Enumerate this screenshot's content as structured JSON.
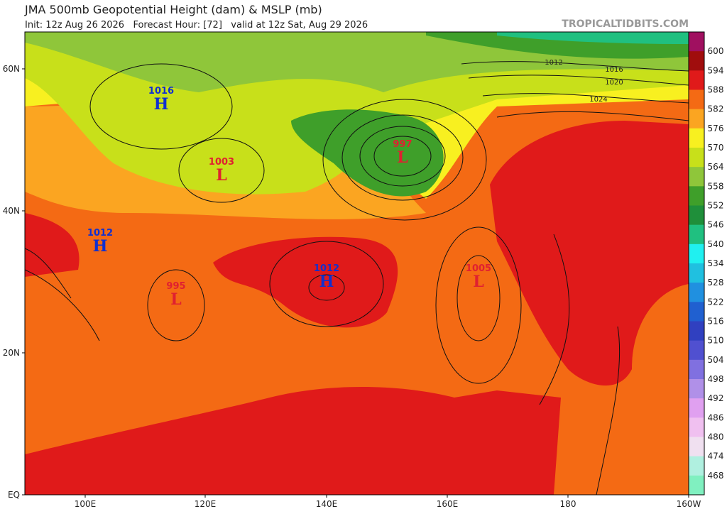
{
  "header": {
    "title": "JMA 500mb Geopotential Height (dam) & MSLP (mb)",
    "subtitle": "Init: 12z Aug 26 2026   Forecast Hour: [72]   valid at 12z Sat, Aug 29 2026",
    "site": "TROPICALTIDBITS.COM"
  },
  "axes": {
    "lat_labels": [
      "60N",
      "40N",
      "20N",
      "EQ"
    ],
    "lon_labels": [
      "100E",
      "120E",
      "140E",
      "160E",
      "180",
      "160W"
    ]
  },
  "colorbar": {
    "levels": [
      {
        "label": "600",
        "color": "#a01060"
      },
      {
        "label": "594",
        "color": "#a00d0d"
      },
      {
        "label": "588",
        "color": "#e01a1a"
      },
      {
        "label": "582",
        "color": "#f46a14"
      },
      {
        "label": "576",
        "color": "#fba521"
      },
      {
        "label": "570",
        "color": "#f8f020"
      },
      {
        "label": "564",
        "color": "#c8e01a"
      },
      {
        "label": "558",
        "color": "#8fc63a"
      },
      {
        "label": "552",
        "color": "#3f9f2a"
      },
      {
        "label": "546",
        "color": "#1f8f3a"
      },
      {
        "label": "540",
        "color": "#20c080"
      },
      {
        "label": "534",
        "color": "#20f0f0"
      },
      {
        "label": "528",
        "color": "#20c0e0"
      },
      {
        "label": "522",
        "color": "#2090e0"
      },
      {
        "label": "516",
        "color": "#2060d0"
      },
      {
        "label": "510",
        "color": "#3040c0"
      },
      {
        "label": "504",
        "color": "#5050d0"
      },
      {
        "label": "498",
        "color": "#8070e0"
      },
      {
        "label": "492",
        "color": "#b090e8"
      },
      {
        "label": "486",
        "color": "#e0a0f0"
      },
      {
        "label": "480",
        "color": "#f0c0f0"
      },
      {
        "label": "474",
        "color": "#f0e0f0"
      },
      {
        "label": "468",
        "color": "#b0f0e0"
      },
      {
        "label": null,
        "color": "#80f0c0"
      }
    ]
  },
  "pressure_centers": [
    {
      "value": "1016",
      "symbol": "H"
    },
    {
      "value": "1003",
      "symbol": "L"
    },
    {
      "value": "997",
      "symbol": "L"
    },
    {
      "value": "1012",
      "symbol": "H"
    },
    {
      "value": "995",
      "symbol": "L"
    },
    {
      "value": "1012",
      "symbol": "H"
    },
    {
      "value": "1005",
      "symbol": "L"
    }
  ],
  "isobar_labels": [
    "1012",
    "1016",
    "1020",
    "1024"
  ]
}
